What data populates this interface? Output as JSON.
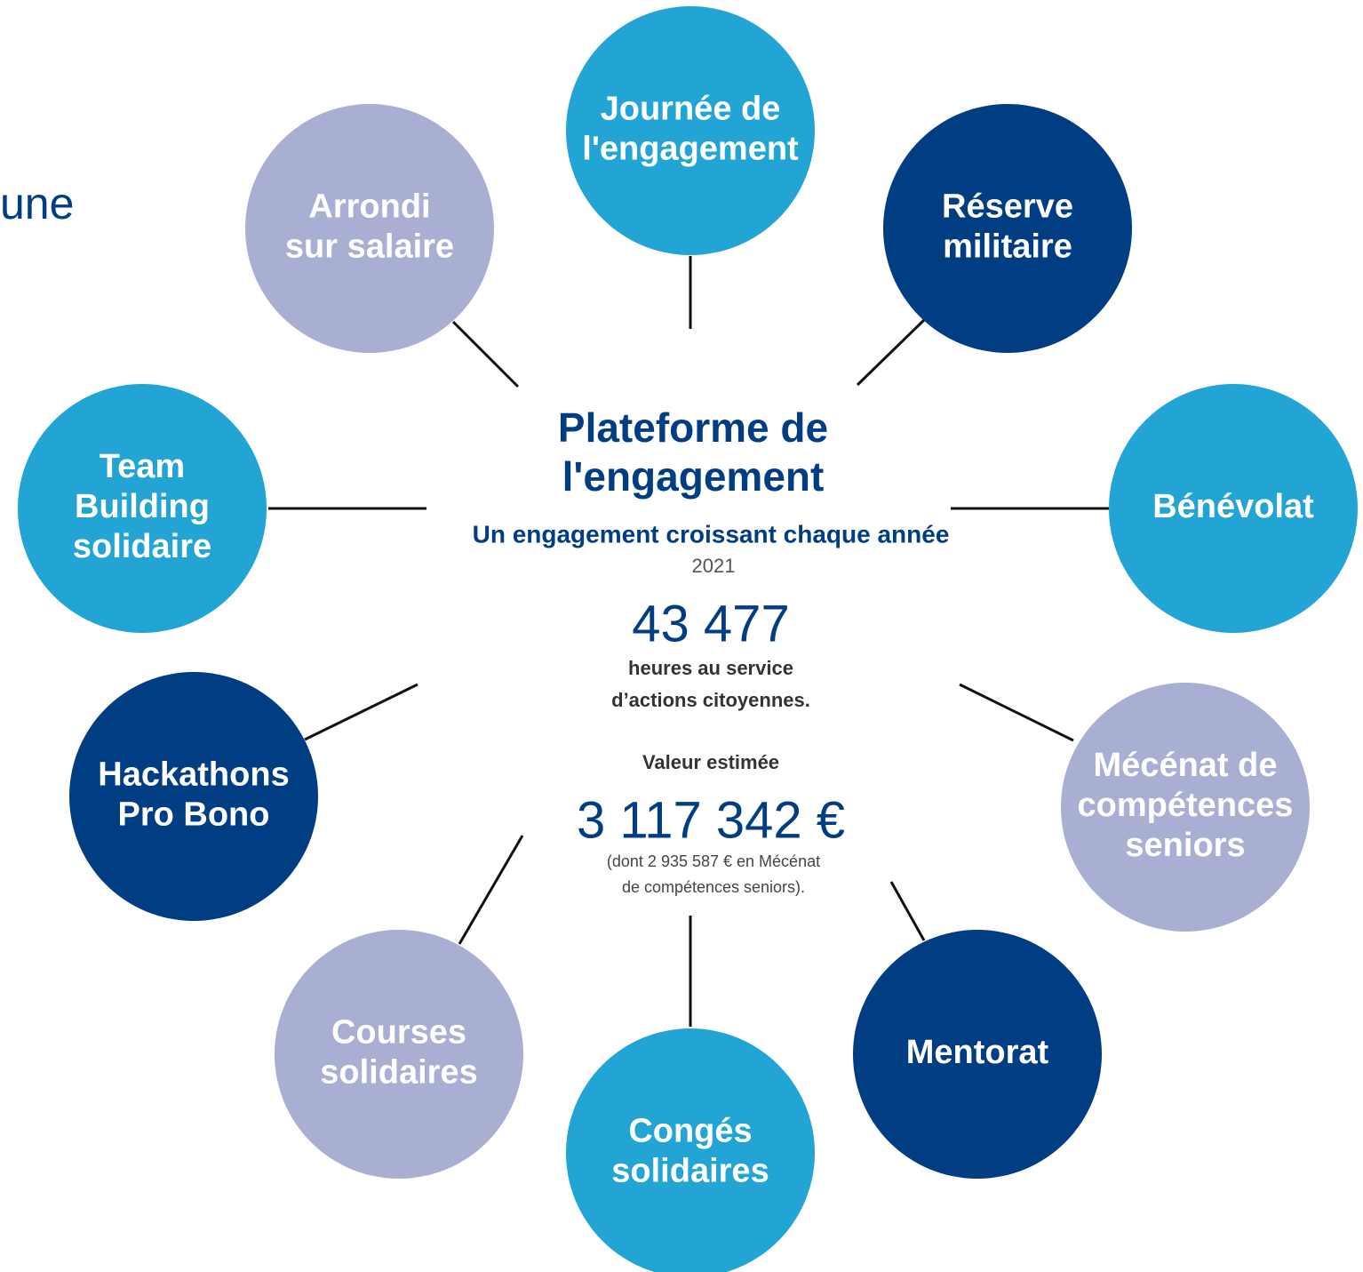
{
  "header": {
    "partial_title": "une"
  },
  "center": {
    "title": [
      "Plateforme de",
      "l'engagement"
    ],
    "subtitle": "Un engagement croissant chaque année",
    "year": "2021",
    "hours": "43 477",
    "hours_caption": [
      "heures au service",
      "d’actions citoyennes."
    ],
    "value_label": "Valeur estimée",
    "value": "3 117 342 €",
    "value_note": [
      "(dont 2 935 587 € en Mécénat",
      "de compétences seniors)."
    ]
  },
  "nodes": [
    {
      "lines": [
        "Journée de",
        "l'engagement"
      ]
    },
    {
      "lines": [
        "Réserve",
        "militaire"
      ]
    },
    {
      "lines": [
        "Bénévolat"
      ]
    },
    {
      "lines": [
        "Mécénat de",
        "compétences",
        "seniors"
      ]
    },
    {
      "lines": [
        "Mentorat"
      ]
    },
    {
      "lines": [
        "Congés",
        "solidaires"
      ]
    },
    {
      "lines": [
        "Courses",
        "solidaires"
      ]
    },
    {
      "lines": [
        "Hackathons",
        "Pro Bono"
      ]
    },
    {
      "lines": [
        "Team",
        "Building",
        "solidaire"
      ]
    },
    {
      "lines": [
        "Arrondi",
        "sur salaire"
      ]
    }
  ]
}
